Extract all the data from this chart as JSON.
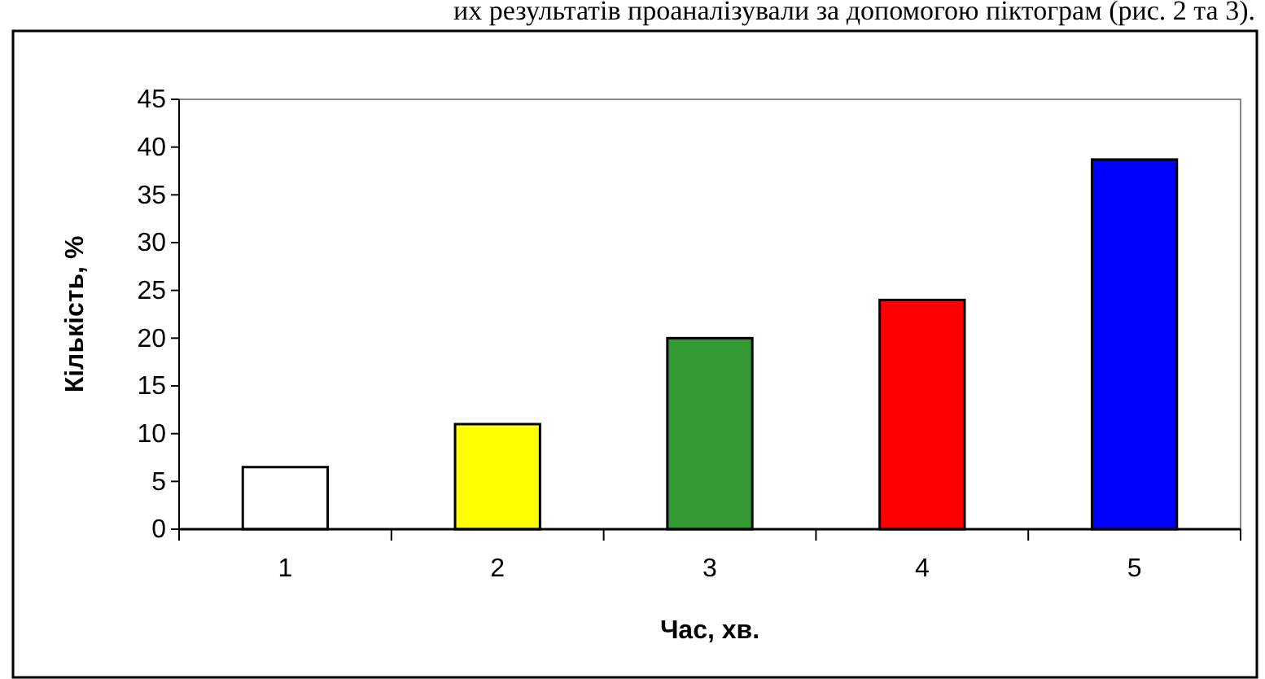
{
  "chart_data": {
    "type": "bar",
    "xlabel": "Час, хв.",
    "ylabel": "Кількість, %",
    "annotations": [
      "их результатів проаналізували за допомогою піктограм (рис. 2 та 3)."
    ],
    "categories": [
      "1",
      "2",
      "3",
      "4",
      "5"
    ],
    "values": [
      6.5,
      11,
      20,
      24,
      38.7
    ],
    "colors": [
      "#ffffff",
      "#ffff00",
      "#339933",
      "#ff0000",
      "#0000ff"
    ],
    "ylim": [
      0,
      45
    ],
    "yticks": [
      0,
      5,
      10,
      15,
      20,
      25,
      30,
      35,
      40,
      45
    ],
    "grid": false
  }
}
